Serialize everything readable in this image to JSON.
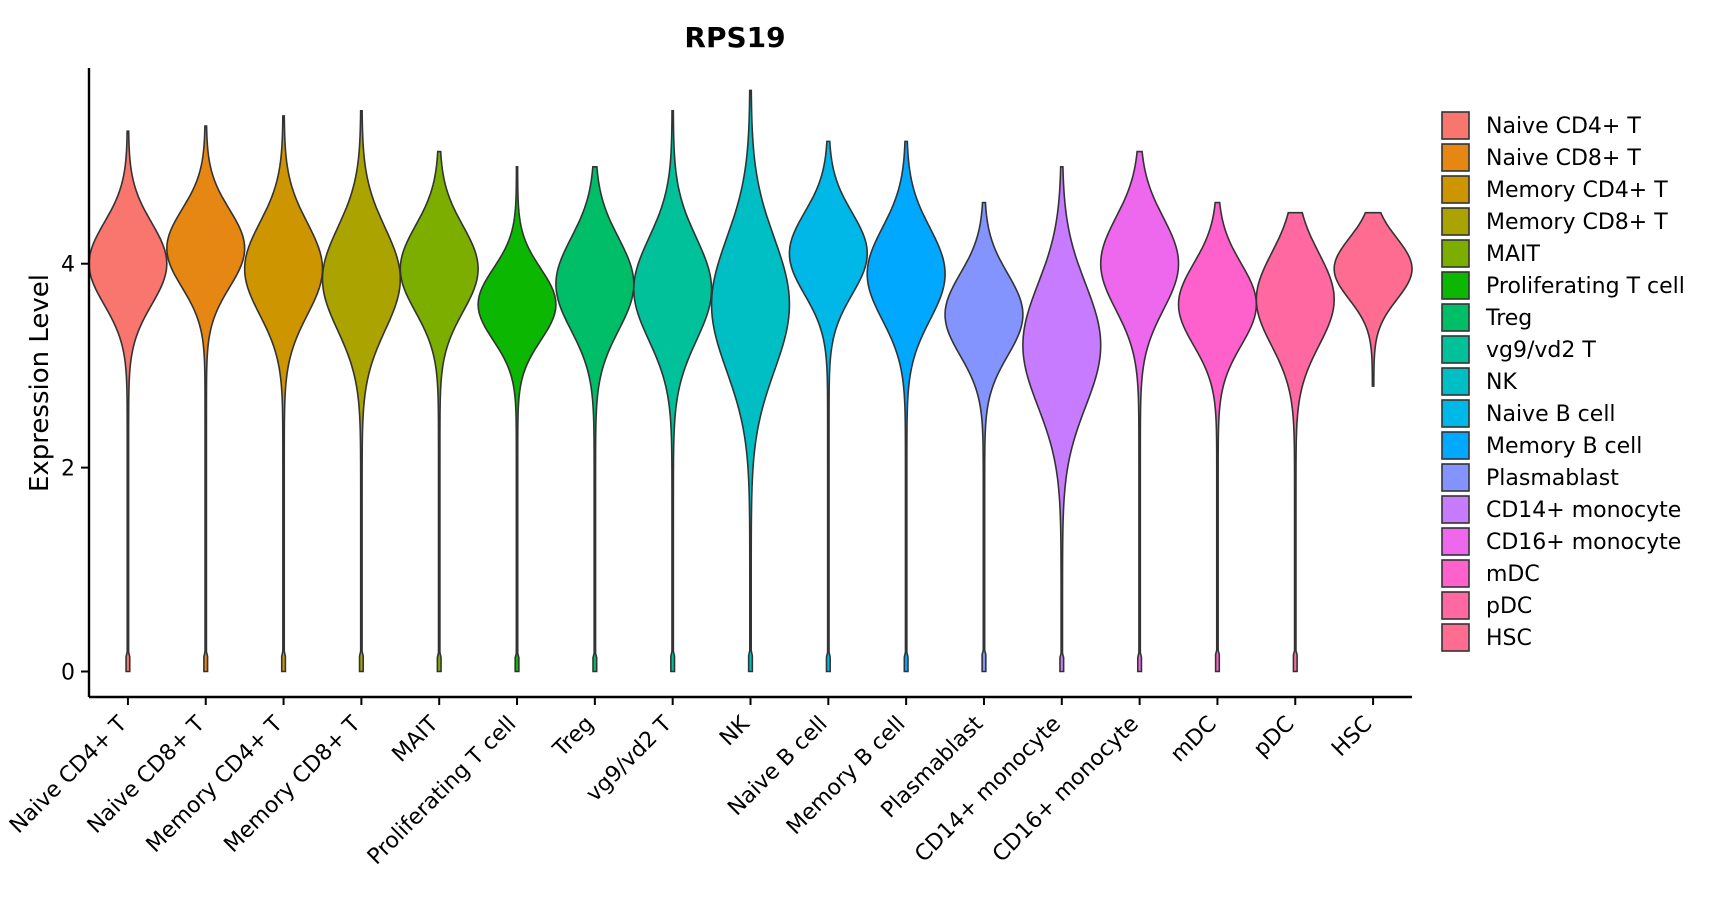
{
  "chart_data": {
    "type": "violin",
    "title": "RPS19",
    "xlabel": "",
    "ylabel": "Expression Level",
    "ylim": [
      -0.25,
      5.9
    ],
    "yticks": [
      0,
      2,
      4
    ],
    "legend_position": "right",
    "categories": [
      "Naive CD4+ T",
      "Naive CD8+ T",
      "Memory CD4+ T",
      "Memory CD8+ T",
      "MAIT",
      "Proliferating T cell",
      "Treg",
      "vg9/vd2 T",
      "NK",
      "Naive B cell",
      "Memory B cell",
      "Plasmablast",
      "CD14+ monocyte",
      "CD16+ monocyte",
      "mDC",
      "pDC",
      "HSC"
    ],
    "colors": [
      "#F8766D",
      "#E68613",
      "#CD9600",
      "#ABA300",
      "#7CAE00",
      "#0CB702",
      "#00BE67",
      "#00C19A",
      "#00BFC4",
      "#00B8E7",
      "#00A9FF",
      "#8494FF",
      "#C77CFF",
      "#ED68ED",
      "#FF61CC",
      "#FF68A1",
      "#FF6C91"
    ],
    "series": [
      {
        "name": "Naive CD4+ T",
        "min": 0,
        "max": 5.3,
        "mode": 4.0,
        "spread": 0.4
      },
      {
        "name": "Naive CD8+ T",
        "min": 0,
        "max": 5.35,
        "mode": 4.15,
        "spread": 0.38
      },
      {
        "name": "Memory CD4+ T",
        "min": 0,
        "max": 5.45,
        "mode": 3.95,
        "spread": 0.45
      },
      {
        "name": "Memory CD8+ T",
        "min": 0,
        "max": 5.5,
        "mode": 3.85,
        "spread": 0.5
      },
      {
        "name": "MAIT",
        "min": 0,
        "max": 5.1,
        "mode": 3.95,
        "spread": 0.42
      },
      {
        "name": "Proliferating T cell",
        "min": 0,
        "max": 4.95,
        "mode": 3.6,
        "spread": 0.35
      },
      {
        "name": "Treg",
        "min": 0,
        "max": 4.95,
        "mode": 3.8,
        "spread": 0.45
      },
      {
        "name": "vg9/vd2 T",
        "min": 0,
        "max": 5.5,
        "mode": 3.75,
        "spread": 0.5
      },
      {
        "name": "NK",
        "min": 0,
        "max": 5.7,
        "mode": 3.6,
        "spread": 0.65
      },
      {
        "name": "Naive B cell",
        "min": 0,
        "max": 5.2,
        "mode": 4.1,
        "spread": 0.4
      },
      {
        "name": "Memory B cell",
        "min": 0,
        "max": 5.2,
        "mode": 3.9,
        "spread": 0.45
      },
      {
        "name": "Plasmablast",
        "min": 0,
        "max": 4.6,
        "mode": 3.5,
        "spread": 0.4
      },
      {
        "name": "CD14+ monocyte",
        "min": 0,
        "max": 4.95,
        "mode": 3.2,
        "spread": 0.6
      },
      {
        "name": "CD16+ monocyte",
        "min": 0,
        "max": 5.1,
        "mode": 4.0,
        "spread": 0.45
      },
      {
        "name": "mDC",
        "min": 0,
        "max": 4.6,
        "mode": 3.6,
        "spread": 0.4
      },
      {
        "name": "pDC",
        "min": 0,
        "max": 4.5,
        "mode": 3.65,
        "spread": 0.45
      },
      {
        "name": "HSC",
        "min": 2.8,
        "max": 4.5,
        "mode": 3.95,
        "spread": 0.3
      }
    ]
  }
}
